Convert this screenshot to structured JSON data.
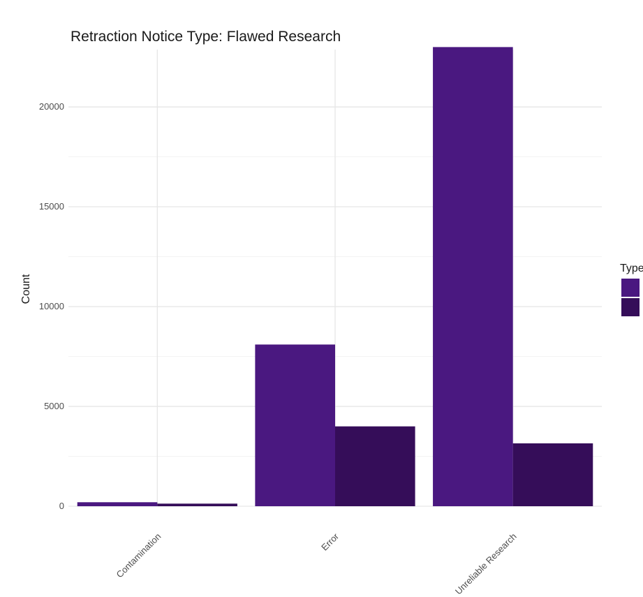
{
  "chart_data": {
    "type": "bar",
    "title": "Retraction Notice Type: Flawed Research",
    "xlabel": "",
    "ylabel": "Count",
    "categories": [
      "Contamination",
      "Error",
      "Unreliable Research"
    ],
    "series": [
      {
        "values": [
          200,
          8100,
          23000
        ],
        "color": "#4a1880"
      },
      {
        "values": [
          130,
          4000,
          3150
        ],
        "color": "#350d59"
      }
    ],
    "ylim": [
      0,
      22000
    ],
    "yticks": [
      0,
      5000,
      10000,
      15000,
      20000
    ],
    "legend": {
      "title": "Type",
      "position": "right"
    },
    "grid": true
  }
}
